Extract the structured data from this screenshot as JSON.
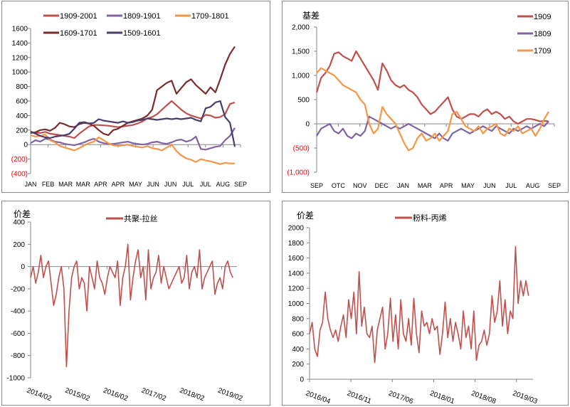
{
  "chart_data": [
    {
      "id": "spread-calendar",
      "type": "line",
      "title": "",
      "ylabel": "",
      "ylim": [
        -400,
        1600
      ],
      "yticks": [
        1600,
        1400,
        1200,
        1000,
        800,
        600,
        400,
        200,
        0,
        -200,
        -400
      ],
      "ytick_labels": [
        "1600",
        "1400",
        "1200",
        "1000",
        "800",
        "600",
        "400",
        "200",
        "0",
        "(200)",
        "(400)"
      ],
      "negative_label_color": "#ff0000",
      "x_categories": [
        "JAN",
        "FEB",
        "MAR",
        "MAR",
        "APR",
        "APR",
        "MAY",
        "JUN",
        "JUN",
        "JUL",
        "JUL",
        "AUG",
        "SEP"
      ],
      "legend": "top",
      "series": [
        {
          "name": "1909-2001",
          "color": "#c0504d",
          "values": [
            170,
            165,
            160,
            175,
            150,
            140,
            130,
            120,
            110,
            90,
            150,
            200,
            250,
            270,
            270,
            265,
            260,
            250,
            240,
            250,
            260,
            270,
            290,
            320,
            360,
            380,
            420,
            480,
            540,
            600,
            540,
            480,
            430,
            400,
            380,
            360,
            410,
            400,
            370,
            380,
            420,
            560,
            580
          ]
        },
        {
          "name": "1809-1901",
          "color": "#8064a2",
          "values": [
            20,
            60,
            40,
            80,
            70,
            40,
            30,
            10,
            0,
            -10,
            10,
            30,
            60,
            80,
            40,
            20,
            10,
            10,
            20,
            30,
            40,
            20,
            10,
            0,
            10,
            30,
            40,
            20,
            10,
            30,
            60,
            70,
            40,
            60,
            110,
            -60,
            -70,
            -50,
            -30,
            -20,
            60,
            120,
            230
          ]
        },
        {
          "name": "1709-1801",
          "color": "#f79646",
          "values": [
            130,
            110,
            120,
            140,
            60,
            30,
            -20,
            -40,
            -60,
            -80,
            -50,
            -10,
            20,
            40,
            100,
            60,
            20,
            -10,
            -20,
            -10,
            0,
            -20,
            -30,
            -40,
            -20,
            -50,
            -60,
            -80,
            -40,
            0,
            -90,
            -150,
            -190,
            -210,
            -240,
            -200,
            -220,
            -230,
            -250,
            -270,
            -250,
            -260,
            -260
          ]
        },
        {
          "name": "1609-1701",
          "color": "#7b2c2c",
          "values": [
            160,
            170,
            200,
            210,
            190,
            230,
            300,
            280,
            250,
            240,
            280,
            300,
            290,
            260,
            200,
            150,
            130,
            200,
            220,
            260,
            300,
            320,
            340,
            360,
            400,
            480,
            750,
            800,
            850,
            880,
            700,
            780,
            860,
            900,
            820,
            760,
            700,
            790,
            720,
            900,
            1100,
            1250,
            1350
          ]
        },
        {
          "name": "1509-1601",
          "color": "#4b3d6a",
          "values": [
            180,
            150,
            120,
            100,
            90,
            110,
            120,
            130,
            150,
            220,
            300,
            310,
            290,
            300,
            350,
            330,
            320,
            310,
            300,
            320,
            300,
            310,
            330,
            340,
            360,
            350,
            340,
            350,
            360,
            350,
            360,
            350,
            360,
            370,
            340,
            320,
            500,
            520,
            580,
            600,
            380,
            300,
            -30
          ]
        }
      ]
    },
    {
      "id": "basis",
      "type": "line",
      "title": "",
      "ylabel": "基差",
      "ylim": [
        -1000,
        2000
      ],
      "yticks": [
        2000,
        1500,
        1000,
        500,
        0,
        -500,
        -1000
      ],
      "ytick_labels": [
        "2,000",
        "1,500",
        "1,000",
        "500",
        "0",
        "(500)",
        "(1,000)"
      ],
      "negative_label_color": "#ff0000",
      "x_categories": [
        "SEP",
        "OTC",
        "NOV",
        "DEC",
        "JAN",
        "MAR",
        "APR",
        "MAY",
        "JUN",
        "JUL",
        "AUG",
        "SEP"
      ],
      "legend": "top-right",
      "series": [
        {
          "name": "1909",
          "color": "#c0504d",
          "values": [
            650,
            950,
            1050,
            1200,
            1450,
            1480,
            1400,
            1350,
            1300,
            1500,
            1350,
            1200,
            1050,
            900,
            700,
            1250,
            1100,
            900,
            800,
            750,
            800,
            700,
            650,
            550,
            400,
            300,
            200,
            250,
            350,
            450,
            550,
            300,
            150,
            100,
            150,
            200,
            200,
            150,
            250,
            300,
            200,
            250,
            200,
            100,
            150,
            50,
            0,
            50,
            100,
            100,
            80,
            50,
            60,
            50
          ]
        },
        {
          "name": "1809",
          "color": "#8064a2",
          "values": [
            -250,
            -100,
            -50,
            0,
            -150,
            -200,
            -100,
            -250,
            -300,
            -200,
            -250,
            -150,
            150,
            100,
            50,
            0,
            -50,
            -100,
            -50,
            -100,
            -50,
            0,
            -50,
            -100,
            -150,
            -200,
            -250,
            -300,
            -200,
            -300,
            -350,
            -200,
            -150,
            -100,
            -150,
            -200,
            -150,
            -100,
            -50,
            -100,
            -150,
            -50,
            -100,
            -150,
            -200,
            -100,
            -150,
            -100,
            -50,
            -100,
            -50,
            0,
            -50,
            50
          ]
        },
        {
          "name": "1709",
          "color": "#f79646",
          "values": [
            1050,
            1150,
            1100,
            1050,
            1000,
            900,
            800,
            750,
            700,
            650,
            500,
            400,
            0,
            -200,
            -100,
            350,
            200,
            100,
            0,
            -200,
            -400,
            -550,
            -500,
            -300,
            -200,
            -350,
            -300,
            -200,
            -350,
            -250,
            -150,
            200,
            250,
            100,
            -50,
            -100,
            -150,
            -50,
            -200,
            -100,
            -50,
            0,
            -200,
            -250,
            -100,
            -150,
            -50,
            -200,
            -150,
            -100,
            -250,
            -100,
            100,
            250
          ]
        }
      ]
    },
    {
      "id": "copolymer-drawn",
      "type": "line",
      "title": "",
      "ylabel": "价差",
      "ylim": [
        -1000,
        400
      ],
      "yticks": [
        400,
        200,
        0,
        -200,
        -400,
        -600,
        -800,
        -1000
      ],
      "ytick_labels": [
        "400",
        "200",
        "0",
        "-200",
        "-400",
        "-600",
        "-800",
        "-1000"
      ],
      "x_categories": [
        "2014/02",
        "2015/02",
        "2016/02",
        "2017/02",
        "2018/02",
        "2019/02"
      ],
      "legend": "top",
      "series": [
        {
          "name": "共聚-拉丝",
          "color": "#c0504d",
          "values": [
            -100,
            0,
            -150,
            -50,
            100,
            -100,
            0,
            50,
            -150,
            -350,
            -250,
            -100,
            0,
            -200,
            -900,
            -400,
            -100,
            0,
            50,
            -200,
            -100,
            -150,
            -400,
            0,
            -100,
            -200,
            50,
            -100,
            -150,
            -250,
            -100,
            0,
            -50,
            -100,
            50,
            -350,
            -100,
            0,
            200,
            -300,
            -100,
            50,
            150,
            -100,
            0,
            -300,
            150,
            -200,
            -100,
            -50,
            100,
            -150,
            0,
            -100,
            -200,
            -150,
            -100,
            -50,
            0,
            -150,
            -100,
            100,
            -200,
            -50,
            0,
            -100,
            150,
            -200,
            -100,
            -50,
            0,
            50,
            -250,
            -150,
            -100,
            -200,
            0,
            50,
            -50,
            -100
          ]
        }
      ]
    },
    {
      "id": "powder-propylene",
      "type": "line",
      "title": "",
      "ylabel": "价差",
      "ylim": [
        0,
        2000
      ],
      "yticks": [
        2000,
        1800,
        1600,
        1400,
        1200,
        1000,
        800,
        600,
        400,
        200,
        0
      ],
      "ytick_labels": [
        "2000",
        "1800",
        "1600",
        "1400",
        "1200",
        "1000",
        "800",
        "600",
        "400",
        "200",
        "0"
      ],
      "x_categories": [
        "2016/04",
        "2016/11",
        "2017/06",
        "2018/01",
        "2018/08",
        "2019/03"
      ],
      "legend": "top",
      "series": [
        {
          "name": "粉料-丙烯",
          "color": "#c0504d",
          "values": [
            600,
            750,
            400,
            300,
            650,
            750,
            1150,
            800,
            650,
            550,
            650,
            500,
            700,
            850,
            550,
            1050,
            800,
            1150,
            600,
            1420,
            700,
            950,
            600,
            550,
            700,
            220,
            650,
            800,
            950,
            400,
            600,
            1070,
            500,
            850,
            400,
            1050,
            600,
            500,
            800,
            450,
            1070,
            600,
            350,
            900,
            700,
            750,
            600,
            800,
            650,
            700,
            330,
            600,
            1020,
            550,
            800,
            500,
            750,
            600,
            400,
            900,
            550,
            700,
            400,
            900,
            250,
            450,
            500,
            650,
            450,
            600,
            1100,
            750,
            900,
            1300,
            700,
            1050,
            600,
            900,
            800,
            1750,
            1000,
            1300,
            1100,
            1300,
            1100
          ]
        }
      ]
    }
  ]
}
